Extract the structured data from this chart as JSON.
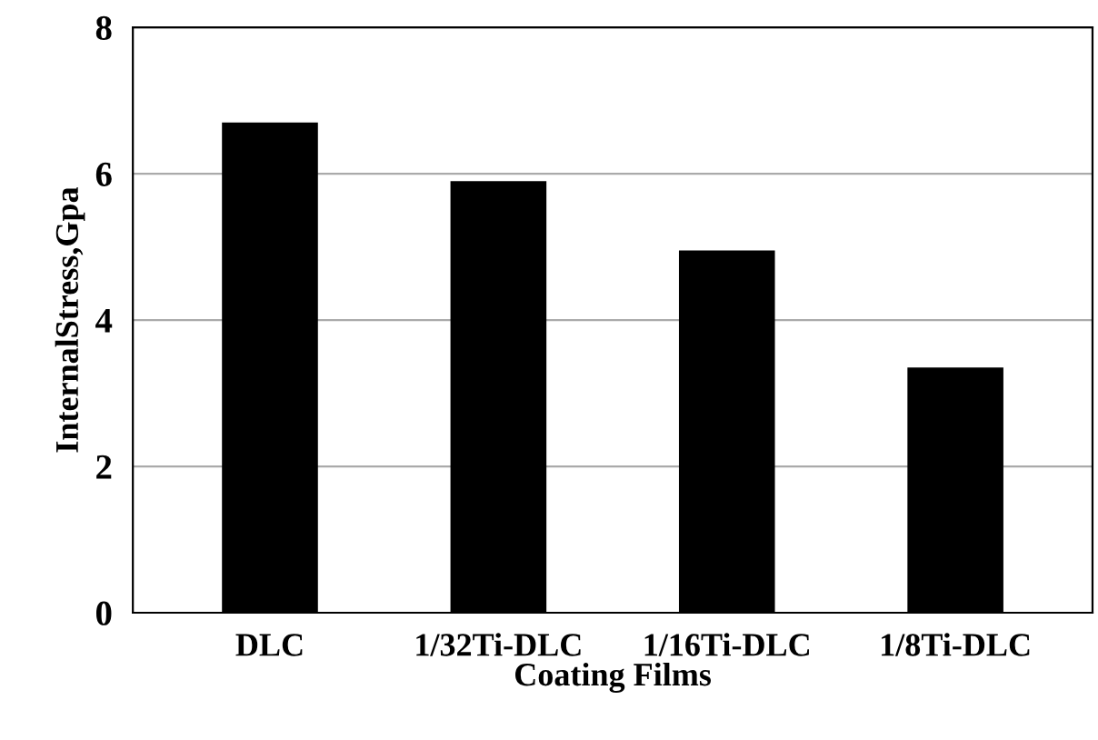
{
  "chart_data": {
    "type": "bar",
    "xlabel": "Coating Films",
    "ylabel": "InternalStress,Gpa",
    "categories": [
      "DLC",
      "1/32Ti-DLC",
      "1/16Ti-DLC",
      "1/8Ti-DLC"
    ],
    "values": [
      6.7,
      5.9,
      4.95,
      3.35
    ],
    "color": "#000000",
    "ylim": [
      0,
      8
    ],
    "yticks": [
      0,
      2,
      4,
      6,
      8
    ],
    "grid": "y"
  }
}
